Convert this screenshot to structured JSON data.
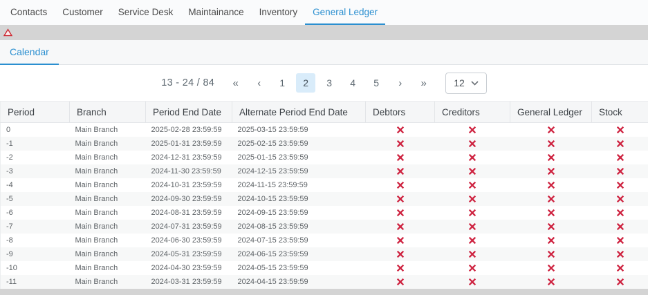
{
  "nav_tabs": {
    "items": [
      "Contacts",
      "Customer",
      "Service Desk",
      "Maintainance",
      "Inventory",
      "General Ledger"
    ],
    "active": "General Ledger"
  },
  "alert_band": {
    "icon": "warning-triangle"
  },
  "subtabs": {
    "items": [
      "Calendar"
    ],
    "active": "Calendar"
  },
  "pagination": {
    "range_label": "13 - 24 / 84",
    "first_label": "«",
    "prev_label": "‹",
    "pages": [
      "1",
      "2",
      "3",
      "4",
      "5"
    ],
    "active_page": "2",
    "next_label": "›",
    "last_label": "»",
    "page_size": "12",
    "page_size_icon": "chevron-down"
  },
  "table": {
    "columns": [
      "Period",
      "Branch",
      "Period End Date",
      "Alternate Period End Date",
      "Debtors",
      "Creditors",
      "General Ledger",
      "Stock"
    ],
    "status_false_icon": "cross",
    "rows": [
      {
        "cells": [
          "0",
          "Main Branch",
          "2025-02-28 23:59:59",
          "2025-03-15 23:59:59"
        ],
        "statuses": [
          false,
          false,
          false,
          false
        ]
      },
      {
        "cells": [
          "-1",
          "Main Branch",
          "2025-01-31 23:59:59",
          "2025-02-15 23:59:59"
        ],
        "statuses": [
          false,
          false,
          false,
          false
        ]
      },
      {
        "cells": [
          "-2",
          "Main Branch",
          "2024-12-31 23:59:59",
          "2025-01-15 23:59:59"
        ],
        "statuses": [
          false,
          false,
          false,
          false
        ]
      },
      {
        "cells": [
          "-3",
          "Main Branch",
          "2024-11-30 23:59:59",
          "2024-12-15 23:59:59"
        ],
        "statuses": [
          false,
          false,
          false,
          false
        ]
      },
      {
        "cells": [
          "-4",
          "Main Branch",
          "2024-10-31 23:59:59",
          "2024-11-15 23:59:59"
        ],
        "statuses": [
          false,
          false,
          false,
          false
        ]
      },
      {
        "cells": [
          "-5",
          "Main Branch",
          "2024-09-30 23:59:59",
          "2024-10-15 23:59:59"
        ],
        "statuses": [
          false,
          false,
          false,
          false
        ]
      },
      {
        "cells": [
          "-6",
          "Main Branch",
          "2024-08-31 23:59:59",
          "2024-09-15 23:59:59"
        ],
        "statuses": [
          false,
          false,
          false,
          false
        ]
      },
      {
        "cells": [
          "-7",
          "Main Branch",
          "2024-07-31 23:59:59",
          "2024-08-15 23:59:59"
        ],
        "statuses": [
          false,
          false,
          false,
          false
        ]
      },
      {
        "cells": [
          "-8",
          "Main Branch",
          "2024-06-30 23:59:59",
          "2024-07-15 23:59:59"
        ],
        "statuses": [
          false,
          false,
          false,
          false
        ]
      },
      {
        "cells": [
          "-9",
          "Main Branch",
          "2024-05-31 23:59:59",
          "2024-06-15 23:59:59"
        ],
        "statuses": [
          false,
          false,
          false,
          false
        ]
      },
      {
        "cells": [
          "-10",
          "Main Branch",
          "2024-04-30 23:59:59",
          "2024-05-15 23:59:59"
        ],
        "statuses": [
          false,
          false,
          false,
          false
        ]
      },
      {
        "cells": [
          "-11",
          "Main Branch",
          "2024-03-31 23:59:59",
          "2024-04-15 23:59:59"
        ],
        "statuses": [
          false,
          false,
          false,
          false
        ]
      }
    ]
  },
  "colors": {
    "accent_blue": "#2b8fd0",
    "cross_red": "#ce2340",
    "active_page_bg": "#d9ecfa",
    "warning_red": "#cc2a33",
    "band_gray": "#d4d4d4"
  }
}
